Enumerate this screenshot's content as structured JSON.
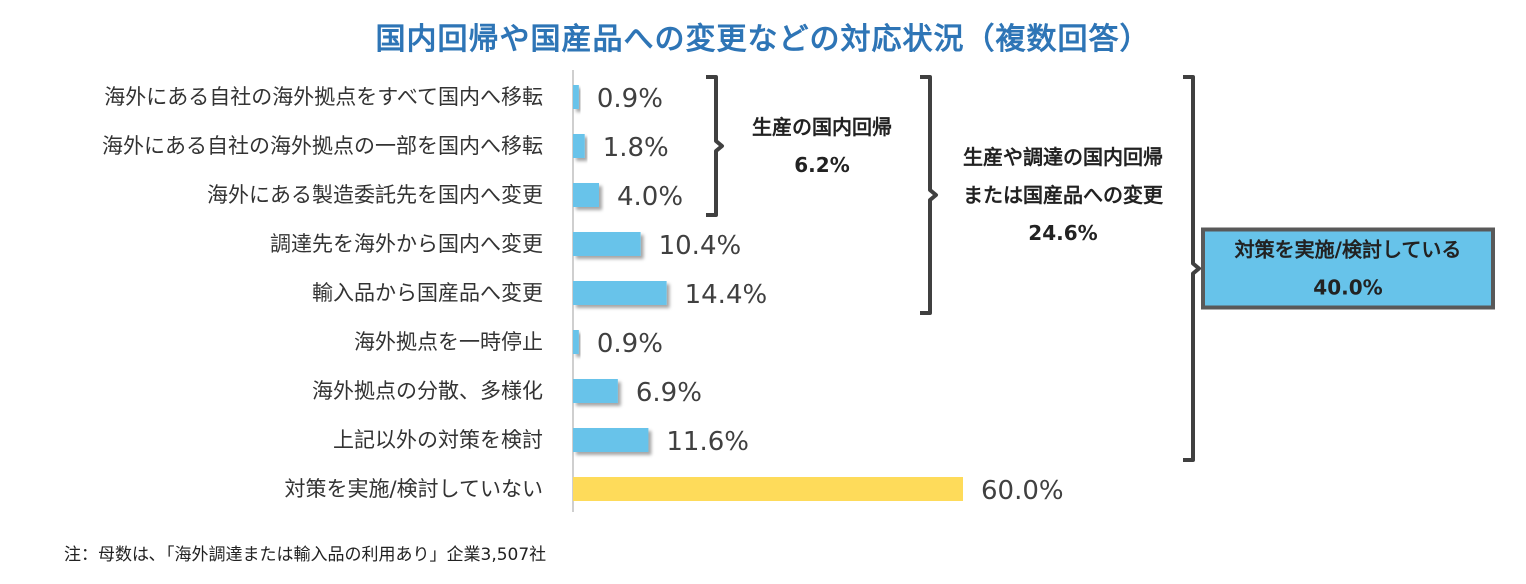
{
  "title": "国内回帰や国産品への変更などの対応状況（複数回答）",
  "chart_data": {
    "type": "bar",
    "orientation": "horizontal",
    "categories": [
      "海外にある自社の海外拠点をすべて国内へ移転",
      "海外にある自社の海外拠点の一部を国内へ移転",
      "海外にある製造委託先を国内へ変更",
      "調達先を海外から国内へ変更",
      "輸入品から国産品へ変更",
      "海外拠点を一時停止",
      "海外拠点の分散、多様化",
      "上記以外の対策を検討",
      "対策を実施/検討していない"
    ],
    "values": [
      0.9,
      1.8,
      4.0,
      10.4,
      14.4,
      0.9,
      6.9,
      11.6,
      60.0
    ],
    "value_labels": [
      "0.9%",
      "1.8%",
      "4.0%",
      "10.4%",
      "14.4%",
      "0.9%",
      "6.9%",
      "11.6%",
      "60.0%"
    ],
    "xlim": [
      0,
      60
    ],
    "colors": {
      "default": "#67c3ea",
      "highlight": "#fedb5a",
      "highlight_index": 8,
      "callout_bg": "#67c3ea",
      "callout_border": "#595959",
      "title": "#2e75b6"
    },
    "groups": [
      {
        "lines": [
          "生産の国内回帰",
          "6.2%"
        ],
        "range": [
          0,
          2
        ]
      },
      {
        "lines": [
          "生産や調達の国内回帰",
          "または国産品への変更",
          "24.6%"
        ],
        "range": [
          0,
          4
        ]
      },
      {
        "lines": [
          "対策を実施/検討している",
          "40.0%"
        ],
        "range": [
          0,
          7
        ],
        "boxed": true
      }
    ]
  },
  "note": "注：母数は､「海外調達または輸入品の利用あり」企業3,507社"
}
